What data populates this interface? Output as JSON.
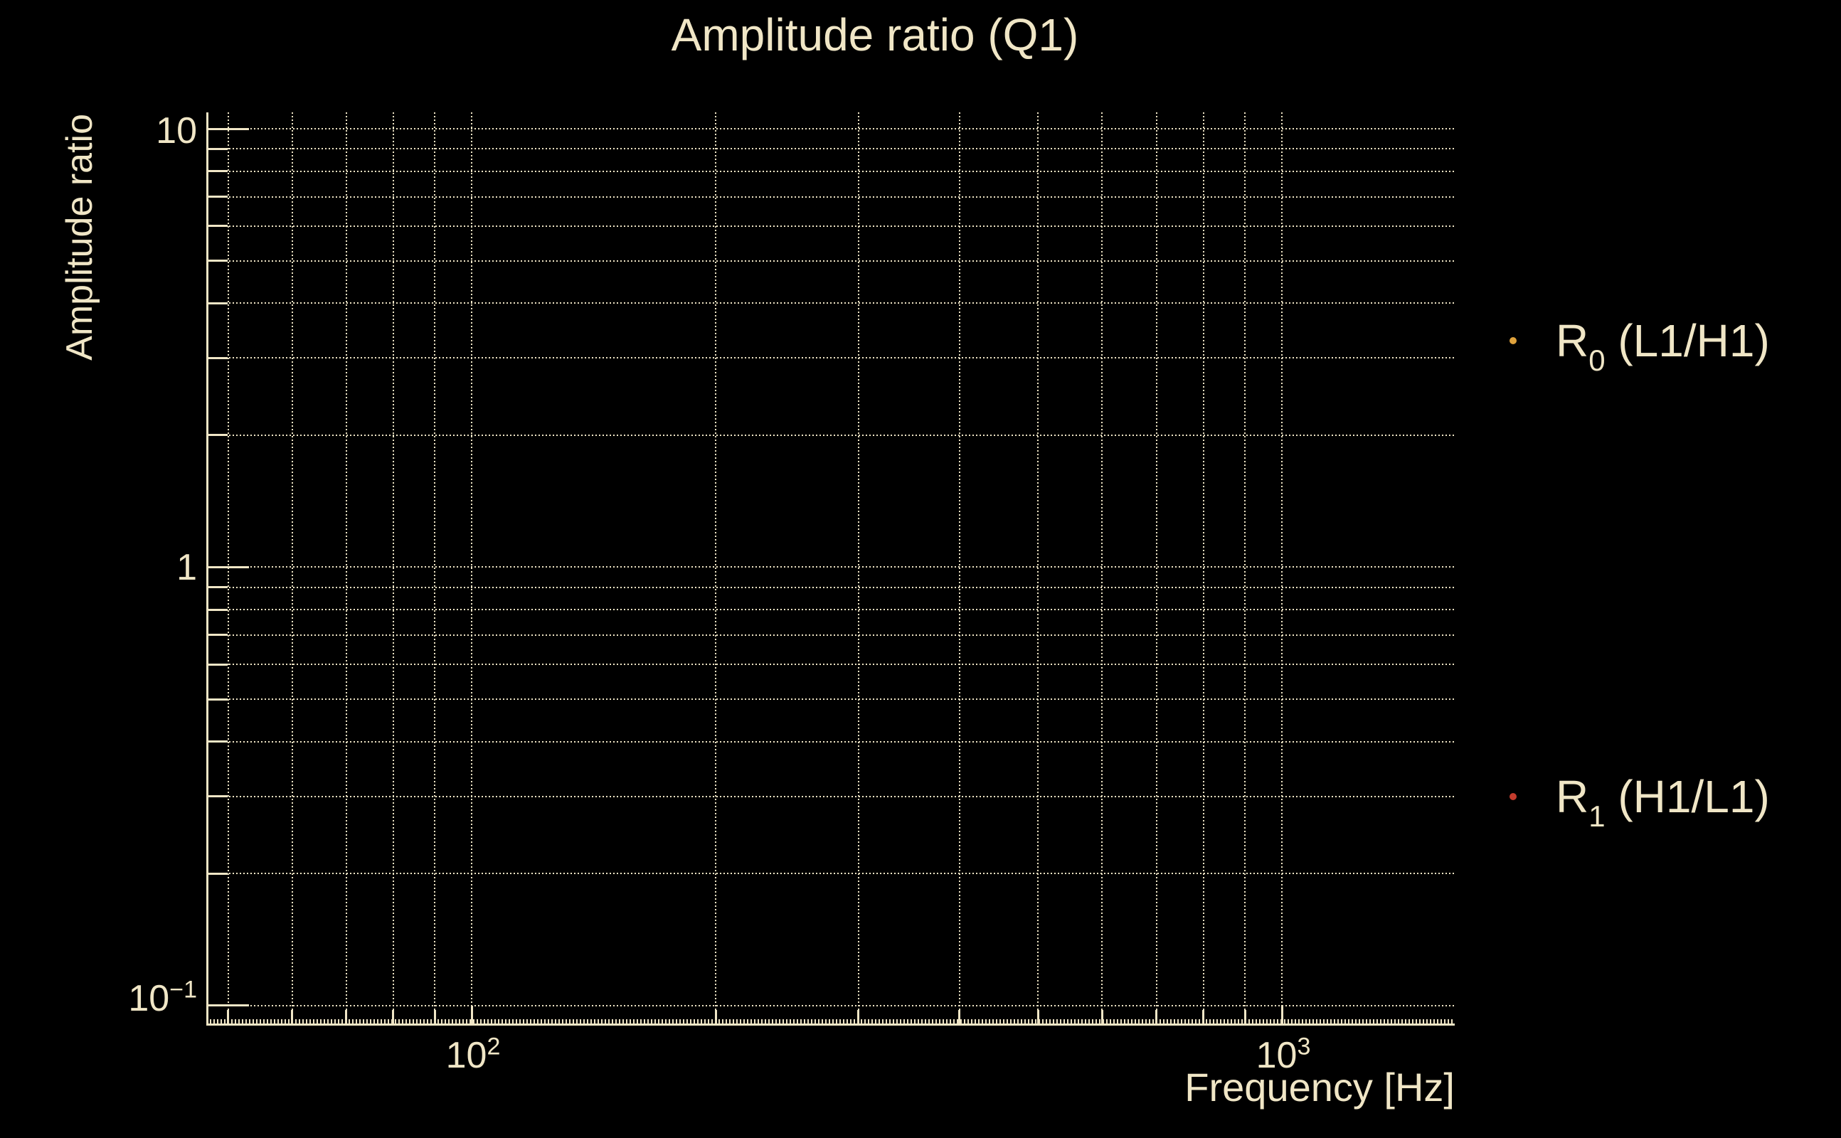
{
  "figure": {
    "background_color": "#000000",
    "foreground_color": "#F0E6C6"
  },
  "chart_data": {
    "type": "scatter",
    "title": "Amplitude ratio (Q1)",
    "xlabel": "Frequency [Hz]",
    "ylabel": "Amplitude ratio",
    "x_scale": "log",
    "y_scale": "log",
    "xlim": [
      47.2,
      1634
    ],
    "ylim": [
      0.0907,
      10.9
    ],
    "x_major_ticks": [
      100,
      1000
    ],
    "x_major_tick_labels": [
      {
        "base": "10",
        "exp": "2"
      },
      {
        "base": "10",
        "exp": "3"
      }
    ],
    "y_major_ticks": [
      10,
      1,
      0.1
    ],
    "y_major_tick_labels": [
      {
        "base": "10",
        "exp": ""
      },
      {
        "base": "1",
        "exp": ""
      },
      {
        "base": "10",
        "exp": "−1"
      }
    ],
    "grid": {
      "which": "major-and-minor",
      "style": "dotted",
      "color": "#EDE3C4"
    },
    "legend_position": "right-of-plot",
    "series": [
      {
        "name": "R0 (L1/H1)",
        "label_main": "R",
        "label_sub": "0",
        "label_rest": " (L1/H1)",
        "color": "#DFA23C",
        "marker": "dot",
        "points": []
      },
      {
        "name": "R1 (H1/L1)",
        "label_main": "R",
        "label_sub": "1",
        "label_rest": " (H1/L1)",
        "color": "#C33C2D",
        "marker": "dot",
        "points": []
      }
    ]
  }
}
